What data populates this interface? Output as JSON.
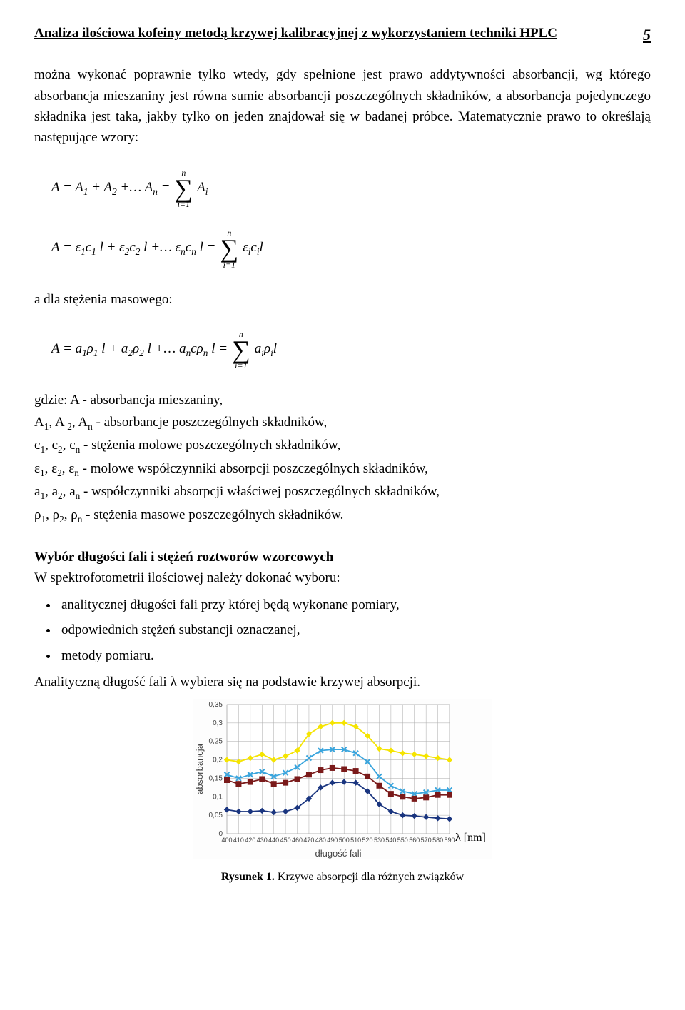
{
  "header": {
    "title": "Analiza ilościowa kofeiny metodą krzywej kalibracyjnej z wykorzystaniem techniki HPLC",
    "page_num": "5"
  },
  "para1": "można wykonać poprawnie tylko wtedy, gdy spełnione jest prawo addytywności absorbancji, wg którego absorbancja mieszaniny jest równa sumie absorbancji poszczególnych składników, a absorbancja pojedynczego składnika jest taka, jakby tylko on jeden znajdował się w badanej próbce. Matematycznie prawo to określają następujące wzory:",
  "formula1": {
    "lhs": "A = A",
    "sub1": "1",
    "mid1": " + A",
    "sub2": "2",
    "mid2": " +… A",
    "subn": "n",
    "eq": "  = ",
    "top": "n",
    "bot": "i=1",
    "rhs": "A",
    "rsub": "i"
  },
  "formula2": {
    "lhs": "A = ε",
    "s1": "1",
    "c": "c",
    "cs1": "1",
    "l": "l + ε",
    "s2": "2",
    "cs2": "2",
    "mid": "l +… ε",
    "sn": "n",
    "csn": "n",
    "eq": "l  = ",
    "top": "n",
    "bot": "i=1",
    "re": "ε",
    "ri": "i",
    "rc": "c",
    "rl": "l"
  },
  "para2": "a dla stężenia masowego:",
  "formula3": {
    "lhs": "A = a",
    "s1": "1",
    "rho": "ρ",
    "rs1": "1",
    "l": "l + a",
    "s2": "2",
    "rs2": "2",
    "mid": "l +… a",
    "sn": "n",
    "cρ": "cρ",
    "rsn": "n",
    "eq": "l  = ",
    "top": "n",
    "bot": "i=1",
    "ra": "a",
    "ri": "i",
    "rl": "l"
  },
  "defs": {
    "l0": "gdzie: A - absorbancja mieszaniny,",
    "l1_a": " A",
    "l1_b": ", A ",
    "l1_c": ", A",
    "l1_d": " - absorbancje poszczególnych składników,",
    "l2_a": "c",
    "l2_b": ", c",
    "l2_c": ", c",
    "l2_d": " - stężenia molowe poszczególnych składników,",
    "l3_a": "ε",
    "l3_b": ", ε",
    "l3_c": ", ε",
    "l3_d": " - molowe współczynniki absorpcji poszczególnych składników,",
    "l4_a": "a",
    "l4_b": ", a",
    "l4_c": ", a",
    "l4_d": " - współczynniki absorpcji właściwej poszczególnych składników,",
    "l5_a": "ρ",
    "l5_b": ", ρ",
    "l5_c": ", ρ",
    "l5_d": " - stężenia masowe poszczególnych składników.",
    "sub1": "1",
    "sub2": "2",
    "subn": "n"
  },
  "section": "Wybór długości fali i stężeń roztworów wzorcowych",
  "para3": "W spektrofotometrii ilościowej należy dokonać wyboru:",
  "bullets": {
    "b1": "analitycznej długości fali przy której będą wykonane pomiary,",
    "b2": "odpowiednich stężeń substancji oznaczanej,",
    "b3": "metody pomiaru."
  },
  "para4": "Analityczną długość fali λ wybiera się na podstawie krzywej absorpcji.",
  "chart": {
    "type": "line-scatter",
    "xlabel": "długość fali",
    "ylabel": "absorbancja",
    "lambda_unit": "λ [nm]",
    "ylim": [
      0,
      0.35
    ],
    "yticks": [
      0,
      0.05,
      0.1,
      0.15,
      0.2,
      0.25,
      0.3,
      0.35
    ],
    "yticklabels": [
      "0",
      "0,05",
      "0,1",
      "0,15",
      "0,2",
      "0,25",
      "0,3",
      "0,35"
    ],
    "xlim": [
      400,
      590
    ],
    "xticks": [
      400,
      410,
      420,
      430,
      440,
      450,
      460,
      470,
      480,
      490,
      500,
      510,
      520,
      530,
      540,
      550,
      560,
      570,
      580,
      590
    ],
    "background_color": "#ffffff",
    "grid_color": "#aaaaaa",
    "series": [
      {
        "name": "s_yellow",
        "color": "#f5e400",
        "marker": "diamond",
        "x": [
          400,
          410,
          420,
          430,
          440,
          450,
          460,
          470,
          480,
          490,
          500,
          510,
          520,
          530,
          540,
          550,
          560,
          570,
          580,
          590
        ],
        "y": [
          0.2,
          0.195,
          0.205,
          0.215,
          0.2,
          0.21,
          0.225,
          0.27,
          0.29,
          0.3,
          0.3,
          0.29,
          0.265,
          0.23,
          0.225,
          0.218,
          0.215,
          0.21,
          0.205,
          0.2
        ]
      },
      {
        "name": "s_blue",
        "color": "#3aa5dd",
        "marker": "x",
        "x": [
          400,
          410,
          420,
          430,
          440,
          450,
          460,
          470,
          480,
          490,
          500,
          510,
          520,
          530,
          540,
          550,
          560,
          570,
          580,
          590
        ],
        "y": [
          0.16,
          0.15,
          0.16,
          0.168,
          0.155,
          0.165,
          0.18,
          0.205,
          0.225,
          0.228,
          0.228,
          0.218,
          0.195,
          0.155,
          0.13,
          0.115,
          0.108,
          0.112,
          0.118,
          0.118
        ]
      },
      {
        "name": "s_darkred",
        "color": "#7a1a1a",
        "marker": "square",
        "x": [
          400,
          410,
          420,
          430,
          440,
          450,
          460,
          470,
          480,
          490,
          500,
          510,
          520,
          530,
          540,
          550,
          560,
          570,
          580,
          590
        ],
        "y": [
          0.145,
          0.135,
          0.14,
          0.148,
          0.135,
          0.138,
          0.148,
          0.16,
          0.172,
          0.178,
          0.175,
          0.17,
          0.155,
          0.13,
          0.108,
          0.1,
          0.095,
          0.098,
          0.105,
          0.105
        ]
      },
      {
        "name": "s_darkblue",
        "color": "#1a357f",
        "marker": "diamond",
        "x": [
          400,
          410,
          420,
          430,
          440,
          450,
          460,
          470,
          480,
          490,
          500,
          510,
          520,
          530,
          540,
          550,
          560,
          570,
          580,
          590
        ],
        "y": [
          0.065,
          0.06,
          0.06,
          0.062,
          0.058,
          0.06,
          0.07,
          0.095,
          0.125,
          0.138,
          0.14,
          0.138,
          0.115,
          0.08,
          0.06,
          0.05,
          0.048,
          0.045,
          0.042,
          0.04
        ]
      }
    ]
  },
  "caption": {
    "bold": "Rysunek 1.",
    "rest": " Krzywe absorpcji dla różnych związków"
  }
}
